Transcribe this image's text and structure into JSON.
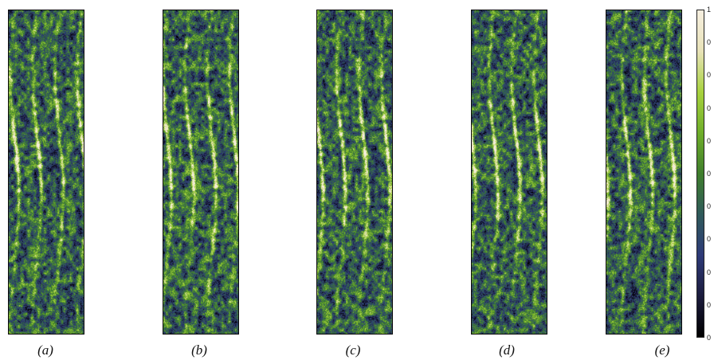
{
  "figure": {
    "panels": [
      {
        "id": "a",
        "caption": "(a)"
      },
      {
        "id": "b",
        "caption": "(b)"
      },
      {
        "id": "c",
        "caption": "(c)"
      },
      {
        "id": "d",
        "caption": "(d)"
      },
      {
        "id": "e",
        "caption": "(e)"
      }
    ],
    "colormap_stops": [
      "#000000",
      "#1b1b3d",
      "#2e3a78",
      "#2f5a5a",
      "#3f7e2c",
      "#6fae2a",
      "#a8d23e",
      "#e8e2b8",
      "#f6efe0"
    ],
    "colorbar": {
      "ticks": [
        "1",
        "0",
        "0",
        "0",
        "0",
        "0",
        "0",
        "0",
        "0",
        "0",
        "0"
      ]
    }
  }
}
